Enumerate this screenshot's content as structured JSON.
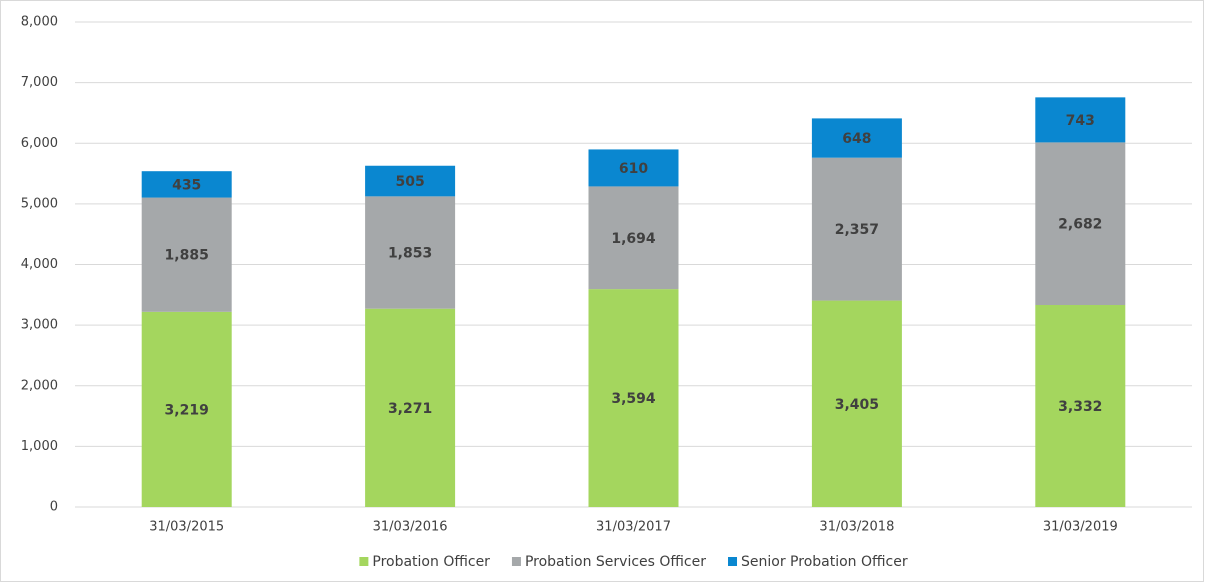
{
  "chart_data": {
    "type": "stacked_bar",
    "categories": [
      "31/03/2015",
      "31/03/2016",
      "31/03/2017",
      "31/03/2018",
      "31/03/2019"
    ],
    "series": [
      {
        "name": "Probation Officer",
        "color": "#a4d65e",
        "values": [
          3219,
          3271,
          3594,
          3405,
          3332
        ],
        "value_labels": [
          "3,219",
          "3,271",
          "3,594",
          "3,405",
          "3,332"
        ]
      },
      {
        "name": "Probation Services Officer",
        "color": "#a5a8aa",
        "values": [
          1885,
          1853,
          1694,
          2357,
          2682
        ],
        "value_labels": [
          "1,885",
          "1,853",
          "1,694",
          "2,357",
          "2,682"
        ]
      },
      {
        "name": "Senior Probation Officer",
        "color": "#0a87d0",
        "values": [
          435,
          505,
          610,
          648,
          743
        ],
        "value_labels": [
          "435",
          "505",
          "610",
          "648",
          "743"
        ]
      }
    ],
    "ylim": [
      0,
      8000
    ],
    "yticks": [
      0,
      {
        "value": 1000,
        "label": "1,000"
      },
      {
        "value": 2000,
        "label": "2,000"
      },
      {
        "value": 3000,
        "label": "3,000"
      },
      {
        "value": 4000,
        "label": "4,000"
      },
      {
        "value": 5000,
        "label": "5,000"
      },
      {
        "value": 6000,
        "label": "6,000"
      },
      {
        "value": 7000,
        "label": "7,000"
      },
      {
        "value": 8000,
        "label": "8,000"
      }
    ],
    "grid": true,
    "legend": "bottom"
  }
}
